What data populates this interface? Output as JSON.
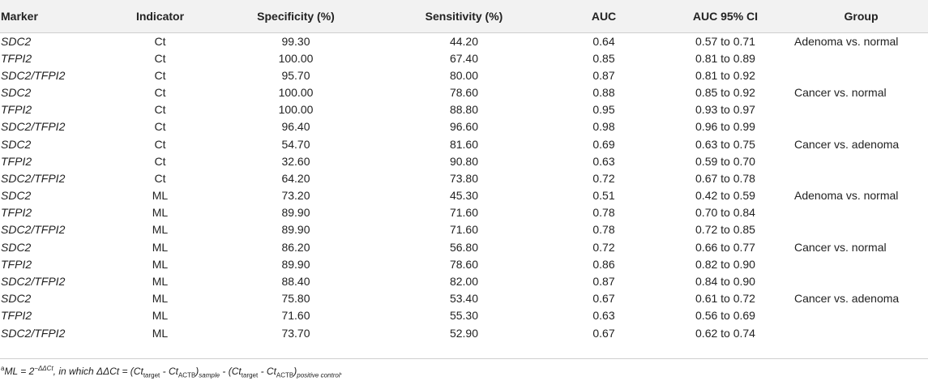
{
  "table": {
    "headers": {
      "marker": "Marker",
      "indicator": "Indicator",
      "specificity": "Specificity (%)",
      "sensitivity": "Sensitivity (%)",
      "auc": "AUC",
      "ci": "AUC 95% CI",
      "group": "Group"
    },
    "rows": [
      {
        "marker": "SDC2",
        "indicator": "Ct",
        "specificity": "99.30",
        "sensitivity": "44.20",
        "auc": "0.64",
        "ci": "0.57 to 0.71",
        "group": "Adenoma vs. normal"
      },
      {
        "marker": "TFPI2",
        "indicator": "Ct",
        "specificity": "100.00",
        "sensitivity": "67.40",
        "auc": "0.85",
        "ci": "0.81 to 0.89",
        "group": ""
      },
      {
        "marker": "SDC2/TFPI2",
        "indicator": "Ct",
        "specificity": "95.70",
        "sensitivity": "80.00",
        "auc": "0.87",
        "ci": "0.81 to 0.92",
        "group": ""
      },
      {
        "marker": "SDC2",
        "indicator": "Ct",
        "specificity": "100.00",
        "sensitivity": "78.60",
        "auc": "0.88",
        "ci": "0.85 to 0.92",
        "group": "Cancer vs. normal"
      },
      {
        "marker": "TFPI2",
        "indicator": "Ct",
        "specificity": "100.00",
        "sensitivity": "88.80",
        "auc": "0.95",
        "ci": "0.93 to 0.97",
        "group": ""
      },
      {
        "marker": "SDC2/TFPI2",
        "indicator": "Ct",
        "specificity": "96.40",
        "sensitivity": "96.60",
        "auc": "0.98",
        "ci": "0.96 to 0.99",
        "group": ""
      },
      {
        "marker": "SDC2",
        "indicator": "Ct",
        "specificity": "54.70",
        "sensitivity": "81.60",
        "auc": "0.69",
        "ci": "0.63 to 0.75",
        "group": "Cancer vs. adenoma"
      },
      {
        "marker": "TFPI2",
        "indicator": "Ct",
        "specificity": "32.60",
        "sensitivity": "90.80",
        "auc": "0.63",
        "ci": "0.59 to 0.70",
        "group": ""
      },
      {
        "marker": "SDC2/TFPI2",
        "indicator": "Ct",
        "specificity": "64.20",
        "sensitivity": "73.80",
        "auc": "0.72",
        "ci": "0.67 to 0.78",
        "group": ""
      },
      {
        "marker": "SDC2",
        "indicator": "ML",
        "specificity": "73.20",
        "sensitivity": "45.30",
        "auc": "0.51",
        "ci": "0.42 to 0.59",
        "group": "Adenoma vs. normal"
      },
      {
        "marker": "TFPI2",
        "indicator": "ML",
        "specificity": "89.90",
        "sensitivity": "71.60",
        "auc": "0.78",
        "ci": "0.70 to 0.84",
        "group": ""
      },
      {
        "marker": "SDC2/TFPI2",
        "indicator": "ML",
        "specificity": "89.90",
        "sensitivity": "71.60",
        "auc": "0.78",
        "ci": "0.72 to 0.85",
        "group": ""
      },
      {
        "marker": "SDC2",
        "indicator": "ML",
        "specificity": "86.20",
        "sensitivity": "56.80",
        "auc": "0.72",
        "ci": "0.66 to 0.77",
        "group": "Cancer vs. normal"
      },
      {
        "marker": "TFPI2",
        "indicator": "ML",
        "specificity": "89.90",
        "sensitivity": "78.60",
        "auc": "0.86",
        "ci": "0.82 to 0.90",
        "group": ""
      },
      {
        "marker": "SDC2/TFPI2",
        "indicator": "ML",
        "specificity": "88.40",
        "sensitivity": "82.00",
        "auc": "0.87",
        "ci": "0.84 to 0.90",
        "group": ""
      },
      {
        "marker": "SDC2",
        "indicator": "ML",
        "specificity": "75.80",
        "sensitivity": "53.40",
        "auc": "0.67",
        "ci": "0.61 to 0.72",
        "group": "Cancer vs. adenoma"
      },
      {
        "marker": "TFPI2",
        "indicator": "ML",
        "specificity": "71.60",
        "sensitivity": "55.30",
        "auc": "0.63",
        "ci": "0.56 to 0.69",
        "group": ""
      },
      {
        "marker": "SDC2/TFPI2",
        "indicator": "ML",
        "specificity": "73.70",
        "sensitivity": "52.90",
        "auc": "0.67",
        "ci": "0.62 to 0.74",
        "group": ""
      }
    ]
  },
  "footnote": {
    "sup_mark": "a",
    "lhs": "ML = 2",
    "exponent": "−ΔΔCt",
    "mid": ", in which ΔΔCt = (Ct",
    "sub_target_1": "target",
    "minus_1": " - Ct",
    "sub_actb_1": "ACTB",
    "close_1": ")",
    "sub_sample": "sample",
    "minus_mid": " - (Ct",
    "sub_target_2": "target",
    "minus_2": " - Ct",
    "sub_actb_2": "ACTB",
    "close_2": ")",
    "sub_positive": "positive control",
    "end": "."
  }
}
